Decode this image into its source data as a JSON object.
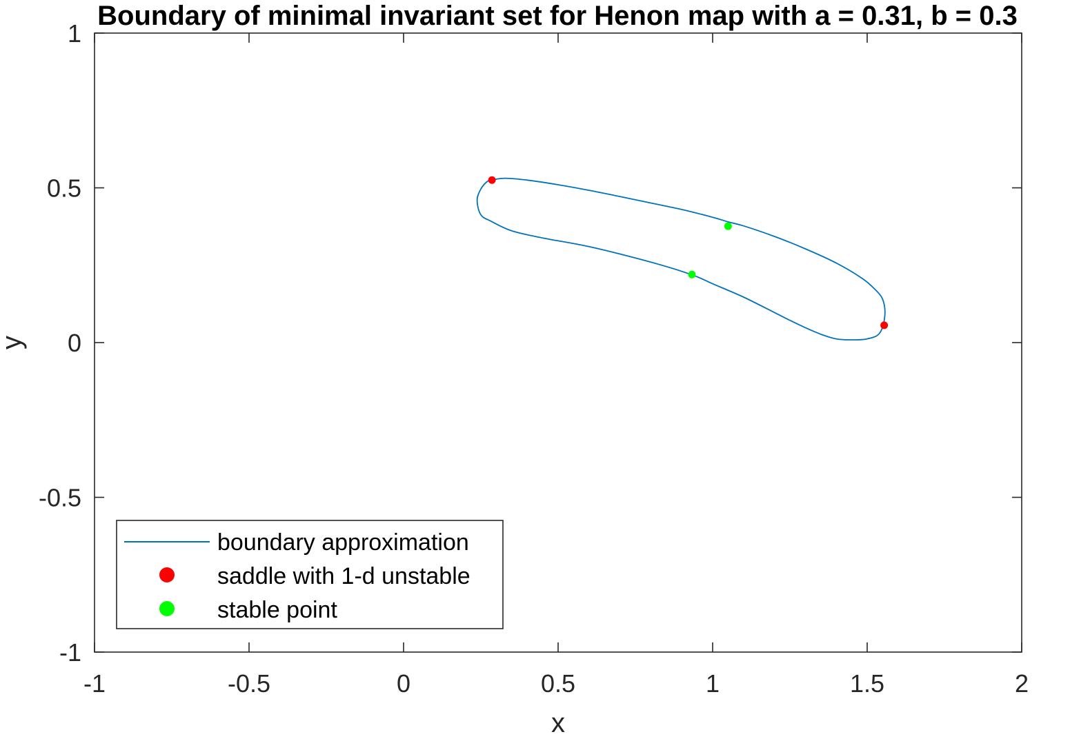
{
  "chart_data": {
    "type": "line",
    "title": "Boundary of minimal invariant set for Henon map with a = 0.31, b = 0.3",
    "xlabel": "x",
    "ylabel": "y",
    "xlim": [
      -1,
      2
    ],
    "ylim": [
      -1,
      1
    ],
    "x_ticks": [
      "-1",
      "-0.5",
      "0",
      "0.5",
      "1",
      "1.5",
      "2"
    ],
    "y_ticks": [
      "-1",
      "-0.5",
      "0",
      "0.5",
      "1"
    ],
    "grid": false,
    "legend_position": "bottom-left",
    "series": [
      {
        "name": "boundary approximation",
        "kind": "line",
        "color": "#0072BD",
        "x": [
          0.287,
          0.33,
          0.4,
          0.5,
          0.6,
          0.7,
          0.8,
          0.9,
          1.0,
          1.05,
          1.1,
          1.2,
          1.3,
          1.4,
          1.48,
          1.52,
          1.55,
          1.557,
          1.54,
          1.5,
          1.45,
          1.4,
          1.35,
          1.3,
          1.25,
          1.2,
          1.1,
          1.0,
          0.933,
          0.8,
          0.6,
          0.45,
          0.35,
          0.285,
          0.25,
          0.238,
          0.25,
          0.27,
          0.287
        ],
        "y": [
          0.526,
          0.531,
          0.525,
          0.51,
          0.492,
          0.472,
          0.451,
          0.43,
          0.405,
          0.39,
          0.377,
          0.343,
          0.303,
          0.257,
          0.21,
          0.177,
          0.14,
          0.085,
          0.03,
          0.012,
          0.009,
          0.012,
          0.027,
          0.048,
          0.072,
          0.097,
          0.147,
          0.19,
          0.219,
          0.26,
          0.31,
          0.338,
          0.361,
          0.391,
          0.413,
          0.46,
          0.496,
          0.52,
          0.526
        ]
      },
      {
        "name": "saddle with 1-d unstable",
        "kind": "marker",
        "color": "#FF0000",
        "x": [
          0.286,
          1.555
        ],
        "y": [
          0.525,
          0.056
        ]
      },
      {
        "name": "stable point",
        "kind": "marker",
        "color": "#00FF00",
        "x": [
          1.05,
          0.933
        ],
        "y": [
          0.376,
          0.22
        ]
      }
    ]
  }
}
